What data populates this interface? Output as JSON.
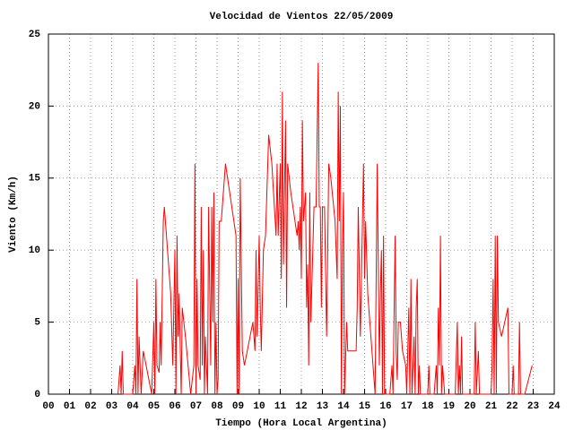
{
  "chart_data": {
    "type": "line",
    "title": "Velocidad de Vientos 22/05/2009",
    "x_label": "Tiempo (Hora Local Argentina)",
    "y_label": "Viento (Km/h)",
    "xlim": [
      0,
      24
    ],
    "ylim": [
      0,
      25
    ],
    "xticks": [
      {
        "value": 0,
        "label": "00"
      },
      {
        "value": 1,
        "label": "01"
      },
      {
        "value": 2,
        "label": "02"
      },
      {
        "value": 3,
        "label": "03"
      },
      {
        "value": 4,
        "label": "04"
      },
      {
        "value": 5,
        "label": "05"
      },
      {
        "value": 6,
        "label": "06"
      },
      {
        "value": 7,
        "label": "07"
      },
      {
        "value": 8,
        "label": "08"
      },
      {
        "value": 9,
        "label": "09"
      },
      10,
      11,
      12,
      13,
      14,
      15,
      16,
      17,
      18,
      19,
      20,
      21,
      22,
      23,
      24
    ],
    "yticks": [
      0,
      5,
      10,
      15,
      20,
      25
    ],
    "grid": true,
    "series": [
      {
        "color": "#ff0000",
        "x": [
          3.3,
          3.4,
          3.45,
          3.5,
          3.55,
          4.0,
          4.1,
          4.15,
          4.2,
          4.25,
          4.3,
          4.4,
          4.5,
          4.9,
          5.0,
          5.05,
          5.1,
          5.15,
          5.25,
          5.3,
          5.35,
          5.45,
          5.5,
          5.6,
          5.8,
          5.9,
          6.0,
          6.05,
          6.1,
          6.15,
          6.2,
          6.3,
          6.35,
          6.5,
          6.75,
          6.9,
          6.95,
          7.0,
          7.05,
          7.1,
          7.2,
          7.25,
          7.3,
          7.35,
          7.4,
          7.45,
          7.55,
          7.6,
          7.7,
          7.75,
          7.8,
          7.85,
          7.9,
          7.95,
          8.0,
          8.05,
          8.1,
          8.2,
          8.4,
          8.9,
          8.95,
          9.0,
          9.05,
          9.1,
          9.2,
          9.3,
          9.7,
          9.8,
          9.85,
          9.9,
          10.0,
          10.05,
          10.1,
          10.2,
          10.3,
          10.45,
          10.6,
          10.8,
          10.85,
          10.9,
          11.0,
          11.05,
          11.1,
          11.15,
          11.25,
          11.3,
          11.35,
          11.5,
          11.8,
          11.85,
          11.9,
          11.95,
          12.0,
          12.05,
          12.1,
          12.2,
          12.25,
          12.3,
          12.35,
          12.4,
          12.45,
          12.6,
          12.7,
          12.8,
          12.85,
          12.9,
          12.95,
          13.0,
          13.1,
          13.2,
          13.3,
          13.4,
          13.6,
          13.7,
          13.75,
          13.8,
          13.85,
          13.9,
          13.95,
          14.0,
          14.05,
          14.15,
          14.2,
          14.6,
          14.65,
          14.7,
          14.8,
          14.85,
          14.95,
          15.0,
          15.05,
          15.15,
          15.5,
          15.6,
          15.7,
          15.75,
          15.8,
          15.85,
          15.9,
          15.95,
          16.0,
          16.1,
          16.2,
          16.3,
          16.35,
          16.45,
          16.5,
          16.55,
          16.6,
          16.7,
          16.8,
          16.95,
          17.0,
          17.1,
          17.15,
          17.2,
          17.25,
          17.3,
          17.35,
          17.4,
          17.45,
          17.5,
          17.55,
          17.6,
          17.65,
          18.0,
          18.05,
          18.1,
          18.2,
          18.3,
          18.4,
          18.45,
          18.5,
          18.55,
          18.6,
          18.65,
          18.7,
          18.8,
          19.3,
          19.4,
          19.45,
          19.5,
          19.55,
          19.6,
          19.65,
          20.2,
          20.25,
          20.3,
          20.4,
          20.45,
          21.0,
          21.05,
          21.1,
          21.15,
          21.2,
          21.25,
          21.3,
          21.35,
          21.5,
          21.8,
          21.85,
          22.0,
          22.05,
          22.1,
          22.3,
          22.35,
          22.4,
          22.6,
          22.95
        ],
        "values": [
          0,
          2,
          0,
          3,
          0,
          0,
          2,
          0,
          8,
          0,
          4,
          0,
          3,
          0,
          5,
          0,
          8,
          2,
          1.5,
          5,
          2,
          12,
          13,
          11,
          7,
          2,
          10,
          0,
          11,
          4,
          7,
          0,
          6,
          4,
          0,
          2,
          16,
          0,
          8,
          2,
          1,
          13,
          2,
          10,
          0,
          4,
          0,
          13,
          2,
          13,
          5,
          14,
          0,
          5,
          0,
          1,
          12,
          12,
          16,
          11,
          0,
          8,
          0,
          15,
          3,
          2,
          5,
          3,
          10,
          4,
          11,
          6,
          3,
          10,
          11,
          18,
          16,
          11,
          16,
          11,
          16,
          8,
          21,
          9,
          19,
          6,
          16,
          14,
          11,
          12,
          10,
          13,
          8,
          19,
          12,
          14,
          6,
          9,
          2,
          14,
          5,
          13,
          13,
          23,
          13,
          13,
          6,
          13,
          13,
          4,
          16,
          15,
          12,
          8,
          21,
          12,
          20,
          0,
          10,
          14,
          0,
          5,
          3,
          3,
          6,
          13,
          4,
          8,
          16,
          8,
          12,
          7,
          0,
          16,
          2,
          7,
          10,
          0,
          11,
          0,
          0,
          0,
          0,
          2,
          0,
          11,
          3,
          1,
          5,
          5,
          3,
          2,
          0,
          6,
          0,
          8,
          0,
          2,
          4,
          0,
          6,
          8,
          0,
          2,
          0,
          0,
          2,
          0,
          0,
          0,
          2,
          0,
          6,
          2,
          11,
          0,
          2,
          0,
          0,
          5,
          0,
          2,
          0,
          4,
          0,
          0,
          5,
          0,
          3,
          0,
          0,
          2,
          8,
          0,
          11,
          0,
          11,
          5,
          4,
          6,
          0,
          0,
          2,
          0,
          0,
          5,
          0,
          0,
          2
        ]
      }
    ]
  }
}
